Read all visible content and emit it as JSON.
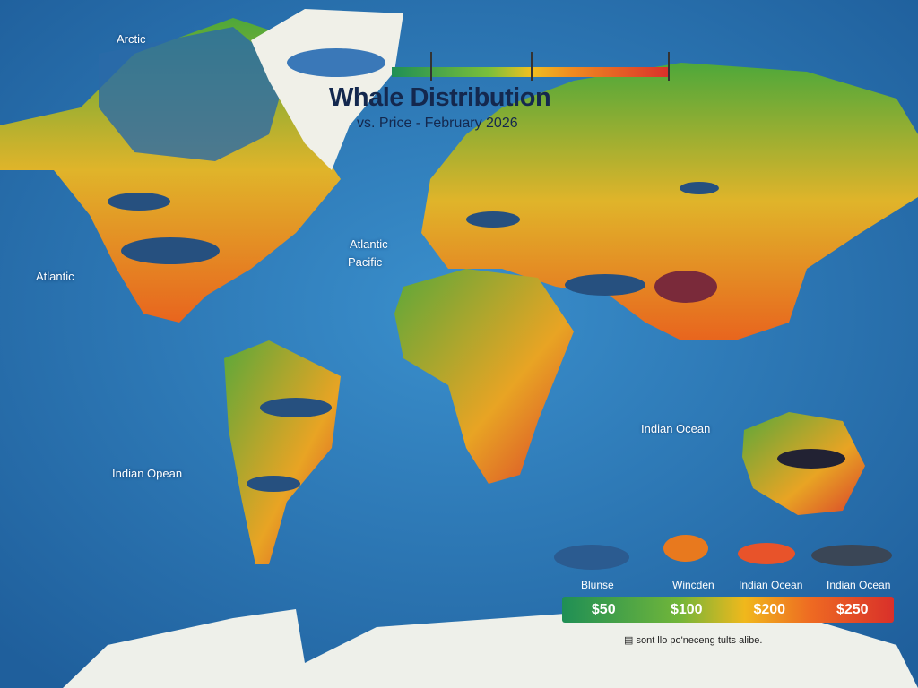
{
  "title": "Whale Distribution",
  "subtitle": "vs. Price - February 2026",
  "ocean_labels": [
    "Arctic",
    "Atlantic",
    "Indian Opean",
    "Atlantic",
    "Pacific",
    "Indian Ocean"
  ],
  "legend": {
    "species": [
      {
        "label": "Blunse",
        "icon": "humpback-whale-icon"
      },
      {
        "label": "Wincden",
        "icon": "tiger-icon"
      },
      {
        "label": "Indian Ocean",
        "icon": "red-whale-icon"
      },
      {
        "label": "Indian Ocean",
        "icon": "orca-icon"
      }
    ],
    "prices": [
      "$50",
      "$100",
      "$200",
      "$250"
    ],
    "note": "sont llo po'neceng tults alibe."
  },
  "colors": {
    "ocean": "#2f7fbf",
    "low": "#1f8f55",
    "mid": "#f0b81c",
    "high": "#d9302a",
    "title": "#14284e"
  }
}
